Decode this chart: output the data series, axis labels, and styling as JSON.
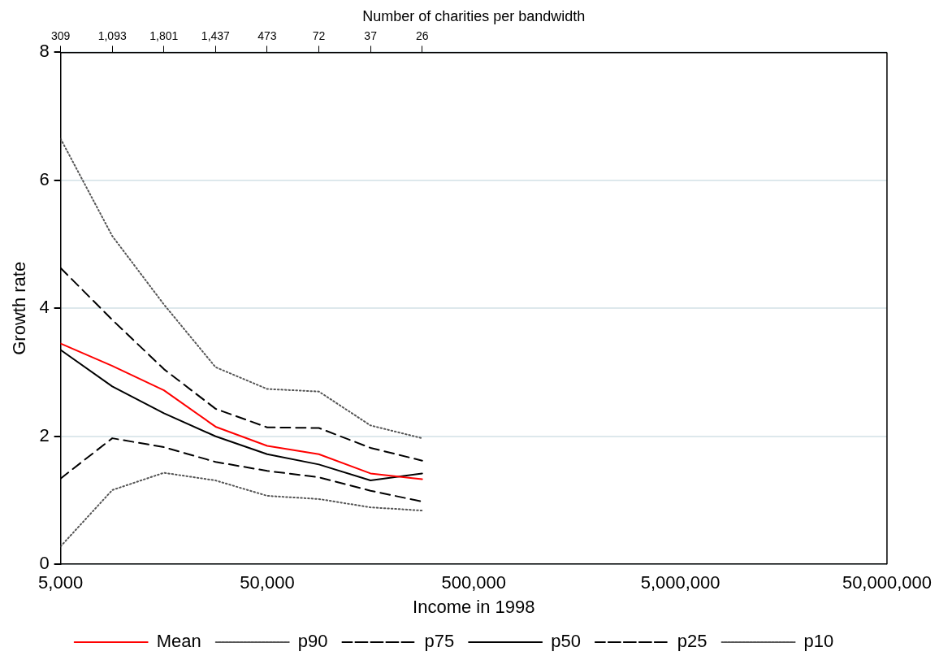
{
  "chart_data": {
    "type": "line",
    "xlabel": "Income in 1998",
    "ylabel": "Growth rate",
    "x2label": "Number of charities per bandwidth",
    "x": [
      5000,
      8891,
      15811,
      28117,
      50000,
      88914,
      158114,
      281171
    ],
    "series": [
      {
        "name": "Mean",
        "color": "#ff0000",
        "line_style": "solid",
        "values": [
          3.45,
          3.1,
          2.72,
          2.15,
          1.85,
          1.72,
          1.42,
          1.33
        ]
      },
      {
        "name": "p90",
        "color": "#555555",
        "line_style": "dotted",
        "values": [
          6.65,
          5.13,
          4.06,
          3.08,
          2.74,
          2.7,
          2.17,
          1.97
        ]
      },
      {
        "name": "p75",
        "color": "#000000",
        "line_style": "dashed",
        "values": [
          4.63,
          3.82,
          3.05,
          2.43,
          2.14,
          2.13,
          1.82,
          1.62
        ]
      },
      {
        "name": "p50",
        "color": "#000000",
        "line_style": "solid",
        "values": [
          3.35,
          2.78,
          2.36,
          2.0,
          1.72,
          1.56,
          1.31,
          1.42
        ]
      },
      {
        "name": "p25",
        "color": "#000000",
        "line_style": "dashed",
        "values": [
          1.34,
          1.97,
          1.83,
          1.6,
          1.46,
          1.36,
          1.15,
          0.98
        ]
      },
      {
        "name": "p10",
        "color": "#555555",
        "line_style": "dotted",
        "values": [
          0.28,
          1.16,
          1.43,
          1.31,
          1.07,
          1.02,
          0.89,
          0.84
        ]
      }
    ],
    "log": "x",
    "xlim": [
      5000,
      50000000
    ],
    "xticks": [
      {
        "value": 5000,
        "label": "5,000"
      },
      {
        "value": 50000,
        "label": "50,000"
      },
      {
        "value": 500000,
        "label": "500,000"
      },
      {
        "value": 5000000,
        "label": "5,000,000"
      },
      {
        "value": 50000000,
        "label": "50,000,000"
      }
    ],
    "annotations": [
      {
        "text": "309",
        "x": 5000
      },
      {
        "text": "1,093",
        "x": 8891
      },
      {
        "text": "1,801",
        "x": 15811
      },
      {
        "text": "1,437",
        "x": 28117
      },
      {
        "text": "473",
        "x": 50000
      },
      {
        "text": "72",
        "x": 88914
      },
      {
        "text": "37",
        "x": 158114
      },
      {
        "text": "26",
        "x": 281171
      }
    ],
    "ylim": [
      0,
      8
    ],
    "yticks": [
      0,
      2,
      4,
      6,
      8
    ],
    "grid": "y",
    "legend": "bottom",
    "marker": "none"
  }
}
